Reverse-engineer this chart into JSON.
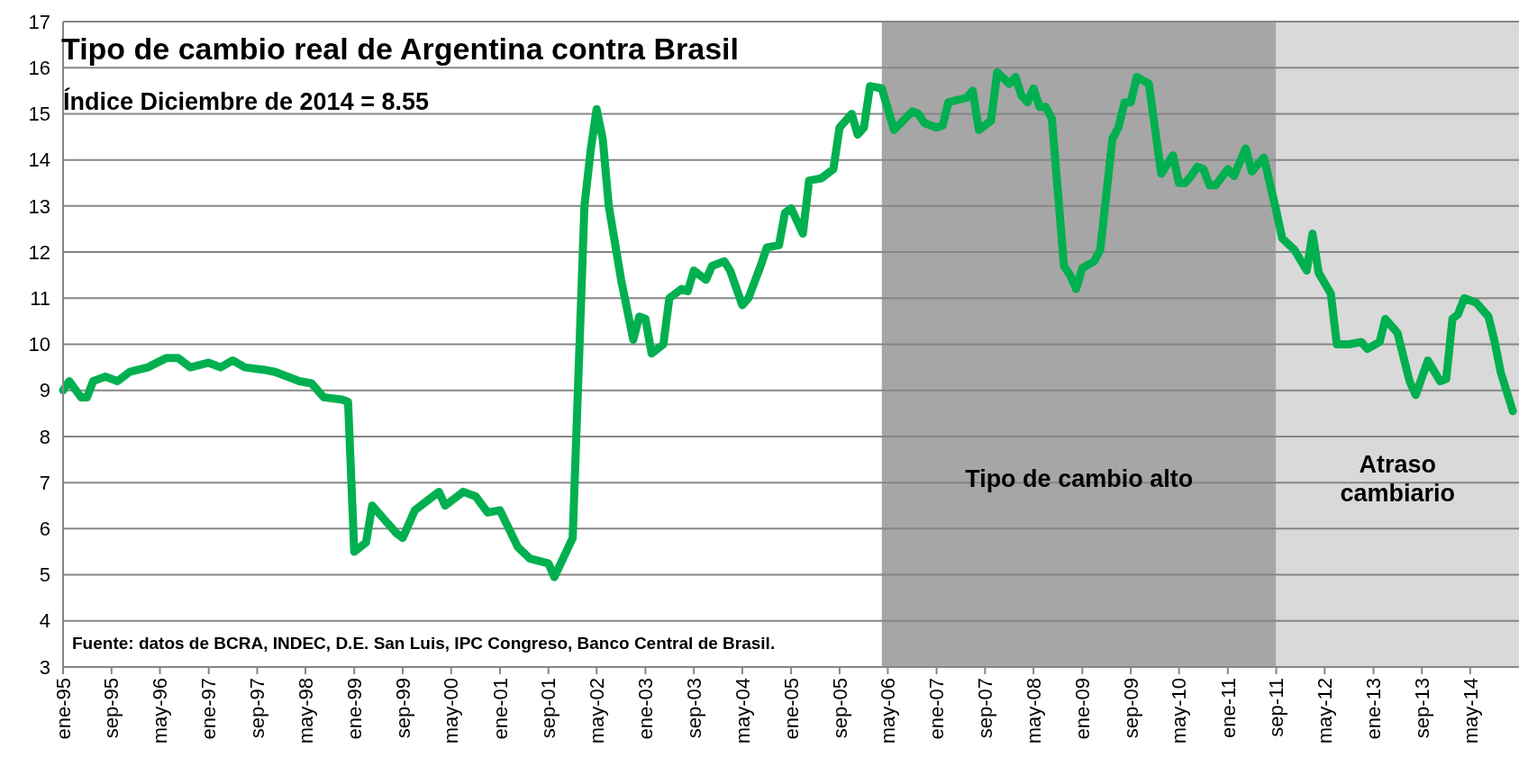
{
  "chart_data": {
    "type": "line",
    "title": "Tipo de cambio real de Argentina contra Brasil",
    "subtitle": "Índice Diciembre de 2014 = 8.55",
    "annotations": [
      "Fuente: datos de BCRA, INDEC, D.E. San Luis, IPC Congreso, Banco Central de Brasil."
    ],
    "x": [
      "1995-01",
      "1995-02",
      "1995-04",
      "1995-05",
      "1995-06",
      "1995-08",
      "1995-10",
      "1995-12",
      "1996-03",
      "1996-06",
      "1996-08",
      "1996-10",
      "1997-01",
      "1997-03",
      "1997-05",
      "1997-07",
      "1997-10",
      "1997-12",
      "1998-04",
      "1998-06",
      "1998-08",
      "1998-11",
      "1998-12",
      "1999-01",
      "1999-03",
      "1999-04",
      "1999-06",
      "1999-08",
      "1999-09",
      "1999-11",
      "2000-03",
      "2000-04",
      "2000-07",
      "2000-09",
      "2000-11",
      "2001-01",
      "2001-04",
      "2001-06",
      "2001-09",
      "2001-10",
      "2002-01",
      "2002-03",
      "2002-04",
      "2002-05",
      "2002-06",
      "2002-07",
      "2002-09",
      "2002-11",
      "2002-12",
      "2003-01",
      "2003-02",
      "2003-04",
      "2003-05",
      "2003-07",
      "2003-08",
      "2003-09",
      "2003-11",
      "2003-12",
      "2004-02",
      "2004-03",
      "2004-05",
      "2004-06",
      "2004-08",
      "2004-09",
      "2004-11",
      "2004-12",
      "2005-01",
      "2005-03",
      "2005-04",
      "2005-06",
      "2005-08",
      "2005-09",
      "2005-11",
      "2005-12",
      "2006-01",
      "2006-02",
      "2006-04",
      "2006-06",
      "2006-09",
      "2006-10",
      "2006-11",
      "2007-01",
      "2007-02",
      "2007-03",
      "2007-06",
      "2007-07",
      "2007-08",
      "2007-10",
      "2007-11",
      "2008-01",
      "2008-02",
      "2008-03",
      "2008-04",
      "2008-05",
      "2008-06",
      "2008-07",
      "2008-08",
      "2008-10",
      "2008-11",
      "2008-12",
      "2009-01",
      "2009-03",
      "2009-04",
      "2009-06",
      "2009-07",
      "2009-08",
      "2009-09",
      "2009-10",
      "2009-12",
      "2010-02",
      "2010-04",
      "2010-05",
      "2010-06",
      "2010-07",
      "2010-08",
      "2010-09",
      "2010-10",
      "2010-11",
      "2011-01",
      "2011-02",
      "2011-04",
      "2011-05",
      "2011-07",
      "2011-09",
      "2011-10",
      "2011-12",
      "2012-02",
      "2012-03",
      "2012-04",
      "2012-06",
      "2012-07",
      "2012-09",
      "2012-11",
      "2012-12",
      "2013-02",
      "2013-03",
      "2013-05",
      "2013-07",
      "2013-08",
      "2013-10",
      "2013-12",
      "2014-01",
      "2014-02",
      "2014-03",
      "2014-04",
      "2014-06",
      "2014-08",
      "2014-09",
      "2014-10",
      "2014-12"
    ],
    "series": [
      {
        "color": "#00b050",
        "values": [
          9.0,
          9.2,
          8.85,
          8.85,
          9.2,
          9.3,
          9.2,
          9.4,
          9.5,
          9.7,
          9.7,
          9.5,
          9.6,
          9.5,
          9.65,
          9.5,
          9.45,
          9.4,
          9.2,
          9.15,
          8.85,
          8.8,
          8.75,
          5.5,
          5.7,
          6.5,
          6.2,
          5.9,
          5.8,
          6.4,
          6.8,
          6.5,
          6.8,
          6.7,
          6.35,
          6.4,
          5.6,
          5.35,
          5.25,
          4.95,
          5.8,
          13.0,
          14.2,
          15.1,
          14.45,
          13.0,
          11.4,
          10.1,
          10.6,
          10.55,
          9.8,
          10.0,
          11.0,
          11.2,
          11.15,
          11.6,
          11.4,
          11.7,
          11.8,
          11.6,
          10.85,
          11.0,
          11.7,
          12.1,
          12.15,
          12.85,
          12.95,
          12.4,
          13.55,
          13.6,
          13.8,
          14.7,
          15.0,
          14.55,
          14.7,
          15.6,
          15.55,
          14.65,
          15.05,
          15.0,
          14.8,
          14.7,
          14.75,
          15.25,
          15.35,
          15.5,
          14.65,
          14.85,
          15.9,
          15.65,
          15.8,
          15.4,
          15.25,
          15.55,
          15.15,
          15.15,
          14.9,
          11.7,
          11.5,
          11.2,
          11.65,
          11.8,
          12.05,
          14.45,
          14.7,
          15.25,
          15.25,
          15.8,
          15.65,
          13.7,
          14.1,
          13.5,
          13.5,
          13.65,
          13.85,
          13.8,
          13.45,
          13.45,
          13.8,
          13.65,
          14.25,
          13.75,
          14.05,
          12.9,
          12.3,
          12.05,
          11.6,
          12.4,
          11.55,
          11.1,
          10.0,
          10.0,
          10.05,
          9.9,
          10.05,
          10.55,
          10.25,
          9.2,
          8.9,
          9.65,
          9.2,
          9.25,
          10.55,
          10.65,
          11.0,
          10.9,
          10.6,
          10.05,
          9.4,
          8.55
        ]
      }
    ],
    "xlim": [
      "1995-01",
      "2015-01"
    ],
    "xticks": [
      {
        "value": "1995-01",
        "label": "ene-95"
      },
      {
        "value": "1995-09",
        "label": "sep-95"
      },
      {
        "value": "1996-05",
        "label": "may-96"
      },
      {
        "value": "1997-01",
        "label": "ene-97"
      },
      {
        "value": "1997-09",
        "label": "sep-97"
      },
      {
        "value": "1998-05",
        "label": "may-98"
      },
      {
        "value": "1999-01",
        "label": "ene-99"
      },
      {
        "value": "1999-09",
        "label": "sep-99"
      },
      {
        "value": "2000-05",
        "label": "may-00"
      },
      {
        "value": "2001-01",
        "label": "ene-01"
      },
      {
        "value": "2001-09",
        "label": "sep-01"
      },
      {
        "value": "2002-05",
        "label": "may-02"
      },
      {
        "value": "2003-01",
        "label": "ene-03"
      },
      {
        "value": "2003-09",
        "label": "sep-03"
      },
      {
        "value": "2004-05",
        "label": "may-04"
      },
      {
        "value": "2005-01",
        "label": "ene-05"
      },
      {
        "value": "2005-09",
        "label": "sep-05"
      },
      {
        "value": "2006-05",
        "label": "may-06"
      },
      {
        "value": "2007-01",
        "label": "ene-07"
      },
      {
        "value": "2007-09",
        "label": "sep-07"
      },
      {
        "value": "2008-05",
        "label": "may-08"
      },
      {
        "value": "2009-01",
        "label": "ene-09"
      },
      {
        "value": "2009-09",
        "label": "sep-09"
      },
      {
        "value": "2010-05",
        "label": "may-10"
      },
      {
        "value": "2011-01",
        "label": "ene-11"
      },
      {
        "value": "2011-09",
        "label": "sep-11"
      },
      {
        "value": "2012-05",
        "label": "may-12"
      },
      {
        "value": "2013-01",
        "label": "ene-13"
      },
      {
        "value": "2013-09",
        "label": "sep-13"
      },
      {
        "value": "2014-05",
        "label": "may-14"
      }
    ],
    "ylim": [
      3,
      17
    ],
    "yticks": [
      3,
      4,
      5,
      6,
      7,
      8,
      9,
      10,
      11,
      12,
      13,
      14,
      15,
      16,
      17
    ],
    "grid": "y",
    "bands": [
      {
        "axis": "x",
        "from": "2006-04",
        "to": "2011-09",
        "label": "Tipo de cambio alto",
        "color": "#a6a6a6"
      },
      {
        "axis": "x",
        "from": "2011-09",
        "to": "2015-01",
        "label": "Atraso cambiario",
        "color": "#d9d9d9"
      }
    ]
  }
}
